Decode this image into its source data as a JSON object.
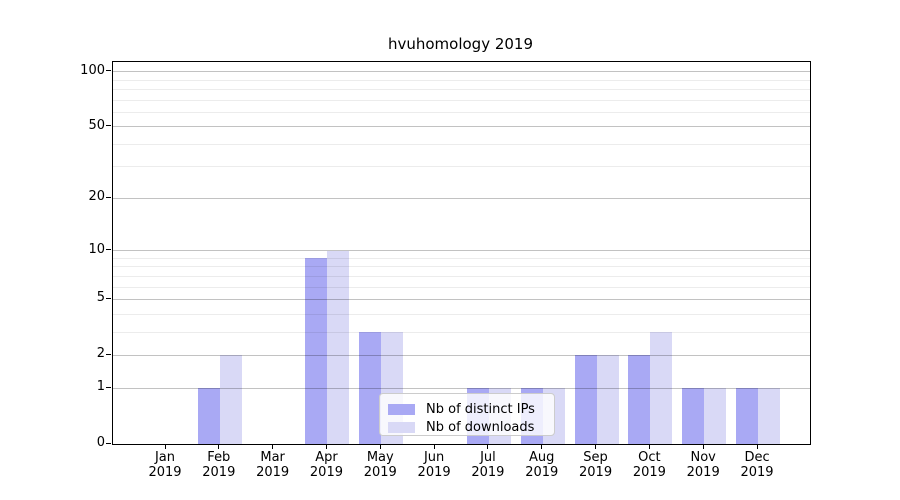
{
  "chart_data": {
    "type": "bar",
    "title": "hvuhomology 2019",
    "categories": [
      "Jan",
      "Feb",
      "Mar",
      "Apr",
      "May",
      "Jun",
      "Jul",
      "Aug",
      "Sep",
      "Oct",
      "Nov",
      "Dec"
    ],
    "year_label": "2019",
    "series": [
      {
        "name": "Nb of distinct IPs",
        "color": "#a9a9f4",
        "values": [
          0,
          1,
          0,
          9,
          3,
          0,
          1,
          1,
          2,
          2,
          1,
          1
        ]
      },
      {
        "name": "Nb of downloads",
        "color": "#d9d9f6",
        "values": [
          0,
          2,
          0,
          10,
          3,
          0,
          1,
          1,
          2,
          3,
          1,
          1
        ]
      }
    ],
    "y_axis": {
      "scale": "log10(value+1)",
      "tick_values": [
        0,
        1,
        2,
        5,
        10,
        20,
        50,
        100
      ],
      "tick_labels": [
        "0",
        "1",
        "2",
        "5",
        "10",
        "20",
        "50",
        "100"
      ],
      "minor_gridline_values": [
        1,
        2,
        3,
        4,
        5,
        6,
        7,
        8,
        9,
        10,
        20,
        30,
        40,
        50,
        60,
        70,
        80,
        90,
        100
      ],
      "major_gridline_values": [
        1,
        2,
        5,
        10,
        20,
        50,
        100
      ],
      "ylim": [
        0,
        113
      ],
      "grid": "on"
    },
    "legend": {
      "entries": [
        "Nb of distinct IPs",
        "Nb of downloads"
      ],
      "position": "lower center"
    }
  },
  "colors": {
    "bar_distinct_ips": "#a9a9f4",
    "bar_downloads": "#d9d9f6",
    "grid_minor": "rgba(0,0,0,0.075)",
    "grid_major": "rgba(0,0,0,0.24)",
    "spine": "#000000",
    "text": "#000000"
  }
}
